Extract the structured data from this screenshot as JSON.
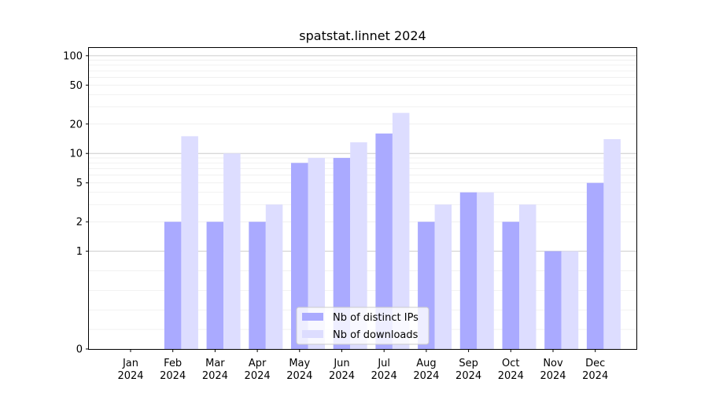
{
  "chart_data": {
    "type": "bar",
    "title": "spatstat.linnet 2024",
    "xlabel": "",
    "ylabel": "",
    "y_scale": "symlog",
    "ylim": [
      0,
      120
    ],
    "categories": [
      [
        "Jan",
        "2024"
      ],
      [
        "Feb",
        "2024"
      ],
      [
        "Mar",
        "2024"
      ],
      [
        "Apr",
        "2024"
      ],
      [
        "May",
        "2024"
      ],
      [
        "Jun",
        "2024"
      ],
      [
        "Jul",
        "2024"
      ],
      [
        "Aug",
        "2024"
      ],
      [
        "Sep",
        "2024"
      ],
      [
        "Oct",
        "2024"
      ],
      [
        "Nov",
        "2024"
      ],
      [
        "Dec",
        "2024"
      ]
    ],
    "y_ticks": [
      0,
      1,
      2,
      5,
      10,
      20,
      50,
      100
    ],
    "series": [
      {
        "name": "Nb of distinct IPs",
        "color": "#aaaaff",
        "values": [
          0,
          2,
          2,
          2,
          8,
          9,
          16,
          2,
          4,
          2,
          1,
          5
        ]
      },
      {
        "name": "Nb of downloads",
        "color": "#ddddff",
        "values": [
          0,
          15,
          10,
          3,
          9,
          13,
          26,
          3,
          4,
          3,
          1,
          14
        ]
      }
    ],
    "grid": true,
    "legend_position": "bottom-center"
  }
}
